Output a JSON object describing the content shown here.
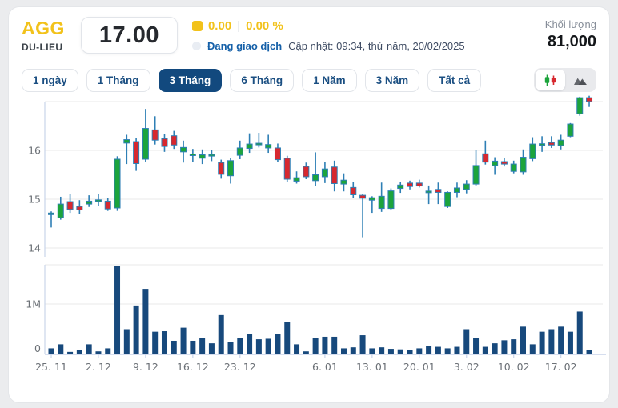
{
  "header": {
    "symbol": "AGG",
    "exchange": "DU-LIEU",
    "price": "17.00",
    "change": "0.00",
    "change_divider": "|",
    "change_percent": "0.00 %",
    "status": "Đang giao dịch",
    "updated": "Cập nhật: 09:34, thứ năm, 20/02/2025",
    "volume_label": "Khối lượng",
    "volume_value": "81,000"
  },
  "tabs": [
    {
      "label": "1 ngày",
      "active": false
    },
    {
      "label": "1 Tháng",
      "active": false
    },
    {
      "label": "3 Tháng",
      "active": true
    },
    {
      "label": "6 Tháng",
      "active": false
    },
    {
      "label": "1 Năm",
      "active": false
    },
    {
      "label": "3 Năm",
      "active": false
    },
    {
      "label": "Tất cả",
      "active": false
    }
  ],
  "view_toggle": {
    "candlestick_icon": "candlestick-icon",
    "area_icon": "area-chart-icon",
    "active": "candlestick"
  },
  "colors": {
    "accent_yellow": "#f2c21b",
    "active_tab_navy": "#12497e",
    "link_blue": "#1560a8",
    "candle_up": "#1ca43c",
    "candle_down": "#d7282f",
    "candle_wick": "#2e7fb5",
    "volume_bar": "#17497c",
    "gridline": "#e9e9e9",
    "axis_line": "#c9d4ea",
    "axis_text": "#6b7076"
  },
  "chart_data": {
    "type": "candlestick",
    "title": "AGG 3-month daily price with volume",
    "price_axis": {
      "tick_labels": [
        "16",
        "15",
        "14"
      ],
      "tick_values": [
        16,
        15,
        14
      ],
      "top_gridline": 17
    },
    "volume_axis": {
      "tick_labels": [
        "1M",
        "0"
      ],
      "tick_values": [
        1000000,
        0
      ]
    },
    "x_labels": [
      {
        "label": "25. 11",
        "index": 0
      },
      {
        "label": "2. 12",
        "index": 5
      },
      {
        "label": "9. 12",
        "index": 10
      },
      {
        "label": "16. 12",
        "index": 15
      },
      {
        "label": "23. 12",
        "index": 20
      },
      {
        "label": "6. 01",
        "index": 29
      },
      {
        "label": "13. 01",
        "index": 34
      },
      {
        "label": "20. 01",
        "index": 39
      },
      {
        "label": "3. 02",
        "index": 44
      },
      {
        "label": "10. 02",
        "index": 49
      },
      {
        "label": "17. 02",
        "index": 54
      }
    ],
    "candles_ohlc": [
      [
        14.7,
        14.75,
        14.42,
        14.7
      ],
      [
        14.62,
        15.05,
        14.58,
        14.9
      ],
      [
        14.95,
        15.1,
        14.72,
        14.79
      ],
      [
        14.85,
        14.98,
        14.7,
        14.78
      ],
      [
        14.9,
        15.08,
        14.84,
        14.96
      ],
      [
        14.97,
        15.1,
        14.86,
        14.97
      ],
      [
        14.96,
        15.02,
        14.76,
        14.8
      ],
      [
        14.82,
        15.88,
        14.76,
        15.82
      ],
      [
        16.15,
        16.32,
        15.72,
        16.22
      ],
      [
        16.18,
        16.25,
        15.58,
        15.73
      ],
      [
        15.82,
        16.85,
        15.77,
        16.45
      ],
      [
        16.42,
        16.7,
        16.12,
        16.21
      ],
      [
        16.24,
        16.33,
        15.97,
        16.08
      ],
      [
        16.3,
        16.4,
        16.03,
        16.11
      ],
      [
        15.97,
        16.2,
        15.75,
        16.06
      ],
      [
        15.9,
        16.03,
        15.76,
        15.91
      ],
      [
        15.84,
        16.02,
        15.72,
        15.91
      ],
      [
        15.9,
        16.01,
        15.78,
        15.9
      ],
      [
        15.75,
        15.81,
        15.42,
        15.51
      ],
      [
        15.48,
        15.84,
        15.32,
        15.79
      ],
      [
        15.9,
        16.2,
        15.82,
        16.05
      ],
      [
        16.04,
        16.35,
        15.95,
        16.13
      ],
      [
        16.12,
        16.36,
        16.06,
        16.13
      ],
      [
        16.05,
        16.32,
        15.95,
        16.12
      ],
      [
        16.05,
        16.14,
        15.76,
        15.81
      ],
      [
        15.84,
        15.89,
        15.36,
        15.41
      ],
      [
        15.37,
        15.57,
        15.32,
        15.44
      ],
      [
        15.67,
        15.75,
        15.41,
        15.46
      ],
      [
        15.38,
        15.96,
        15.27,
        15.5
      ],
      [
        15.46,
        15.76,
        15.33,
        15.62
      ],
      [
        15.66,
        15.79,
        15.16,
        15.32
      ],
      [
        15.31,
        15.53,
        15.16,
        15.39
      ],
      [
        15.24,
        15.35,
        15.02,
        15.09
      ],
      [
        15.08,
        15.11,
        14.22,
        15.02
      ],
      [
        14.98,
        15.06,
        14.72,
        15.03
      ],
      [
        14.81,
        15.34,
        14.74,
        15.06
      ],
      [
        14.81,
        15.22,
        14.77,
        15.17
      ],
      [
        15.22,
        15.36,
        15.13,
        15.29
      ],
      [
        15.33,
        15.38,
        15.2,
        15.26
      ],
      [
        15.33,
        15.4,
        15.24,
        15.27
      ],
      [
        15.15,
        15.28,
        14.9,
        15.15
      ],
      [
        15.2,
        15.34,
        14.9,
        15.14
      ],
      [
        14.85,
        15.16,
        14.82,
        15.14
      ],
      [
        15.14,
        15.34,
        15.04,
        15.23
      ],
      [
        15.2,
        15.39,
        15.12,
        15.31
      ],
      [
        15.31,
        16.0,
        15.28,
        15.69
      ],
      [
        15.93,
        16.2,
        15.71,
        15.76
      ],
      [
        15.69,
        15.86,
        15.5,
        15.78
      ],
      [
        15.77,
        15.84,
        15.67,
        15.72
      ],
      [
        15.57,
        15.79,
        15.53,
        15.72
      ],
      [
        15.56,
        16.02,
        15.5,
        15.86
      ],
      [
        15.83,
        16.27,
        15.78,
        16.13
      ],
      [
        16.12,
        16.29,
        15.97,
        16.12
      ],
      [
        16.16,
        16.29,
        16.05,
        16.11
      ],
      [
        16.1,
        16.32,
        16.02,
        16.21
      ],
      [
        16.29,
        16.56,
        16.27,
        16.54
      ],
      [
        16.75,
        17.1,
        16.71,
        17.08
      ],
      [
        17.08,
        17.12,
        16.89,
        17.0
      ]
    ],
    "volumes_millions": [
      0.12,
      0.2,
      0.05,
      0.09,
      0.2,
      0.06,
      0.12,
      1.75,
      0.5,
      0.97,
      1.3,
      0.45,
      0.46,
      0.27,
      0.53,
      0.27,
      0.32,
      0.22,
      0.78,
      0.24,
      0.32,
      0.4,
      0.3,
      0.31,
      0.4,
      0.65,
      0.2,
      0.06,
      0.33,
      0.35,
      0.35,
      0.12,
      0.14,
      0.38,
      0.12,
      0.14,
      0.11,
      0.1,
      0.08,
      0.12,
      0.17,
      0.15,
      0.12,
      0.15,
      0.5,
      0.32,
      0.15,
      0.22,
      0.28,
      0.3,
      0.55,
      0.2,
      0.45,
      0.5,
      0.55,
      0.45,
      0.85,
      0.08
    ]
  }
}
